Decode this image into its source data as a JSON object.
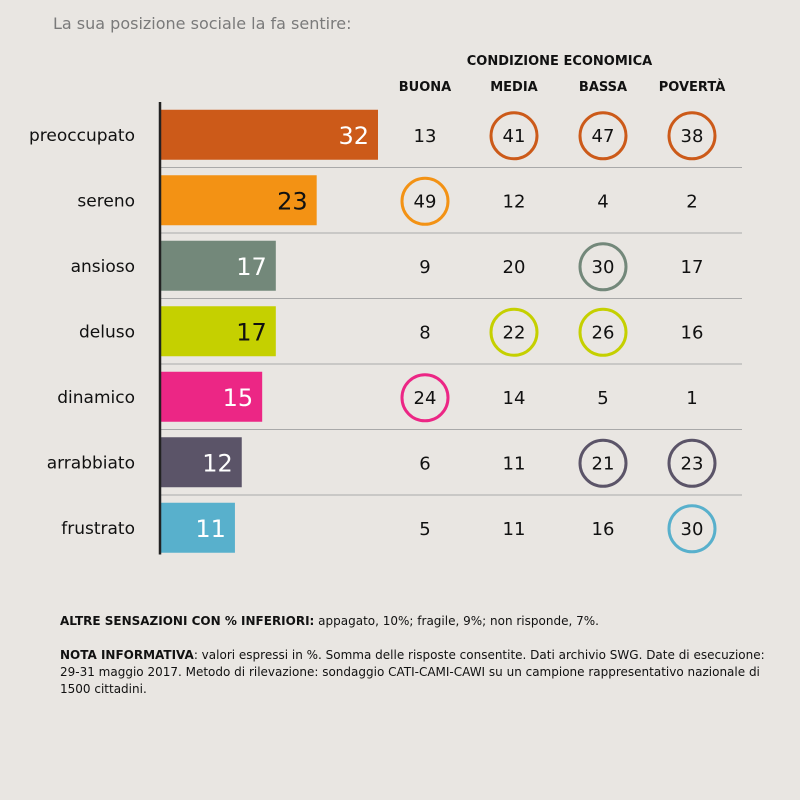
{
  "title": "La sua posizione sociale la fa sentire:",
  "group_header": "CONDIZIONE ECONOMICA",
  "chart_data": {
    "type": "bar",
    "orientation": "horizontal",
    "categories": [
      "preoccupato",
      "sereno",
      "ansioso",
      "deluso",
      "dinamico",
      "arrabbiato",
      "frustrato"
    ],
    "values": [
      32,
      23,
      17,
      17,
      15,
      12,
      11
    ],
    "bar_colors": [
      "#cc5a19",
      "#f39214",
      "#73887a",
      "#c5d000",
      "#ec2685",
      "#5b5468",
      "#58b0cc"
    ],
    "label_colors": [
      "#ffffff",
      "#111111",
      "#ffffff",
      "#111111",
      "#ffffff",
      "#ffffff",
      "#ffffff"
    ],
    "xlim": [
      0,
      32
    ],
    "grid": false
  },
  "table": {
    "columns": [
      "BUONA",
      "MEDIA",
      "BASSA",
      "POVERTÀ"
    ],
    "rows": [
      [
        13,
        41,
        47,
        38
      ],
      [
        49,
        12,
        4,
        2
      ],
      [
        9,
        20,
        30,
        17
      ],
      [
        8,
        22,
        26,
        16
      ],
      [
        24,
        14,
        5,
        1
      ],
      [
        6,
        11,
        21,
        23
      ],
      [
        5,
        11,
        16,
        30
      ]
    ],
    "highlighted": [
      [
        false,
        true,
        true,
        true
      ],
      [
        true,
        false,
        false,
        false
      ],
      [
        false,
        false,
        true,
        false
      ],
      [
        false,
        true,
        true,
        false
      ],
      [
        true,
        false,
        false,
        false
      ],
      [
        false,
        false,
        true,
        true
      ],
      [
        false,
        false,
        false,
        true
      ]
    ]
  },
  "notes": {
    "other_label": "ALTRE SENSAZIONI CON % INFERIORI:",
    "other_text": " appagato, 10%; fragile, 9%; non risponde, 7%.",
    "info_label": "NOTA INFORMATIVA",
    "info_text": ": valori espressi in %. Somma delle risposte consentite. Dati archivio SWG. Date di esecuzione: 29-31 maggio 2017. Metodo di rilevazione: sondaggio CATI-CAMI-CAWI su un campione rappresentativo nazionale di 1500 cittadini."
  }
}
